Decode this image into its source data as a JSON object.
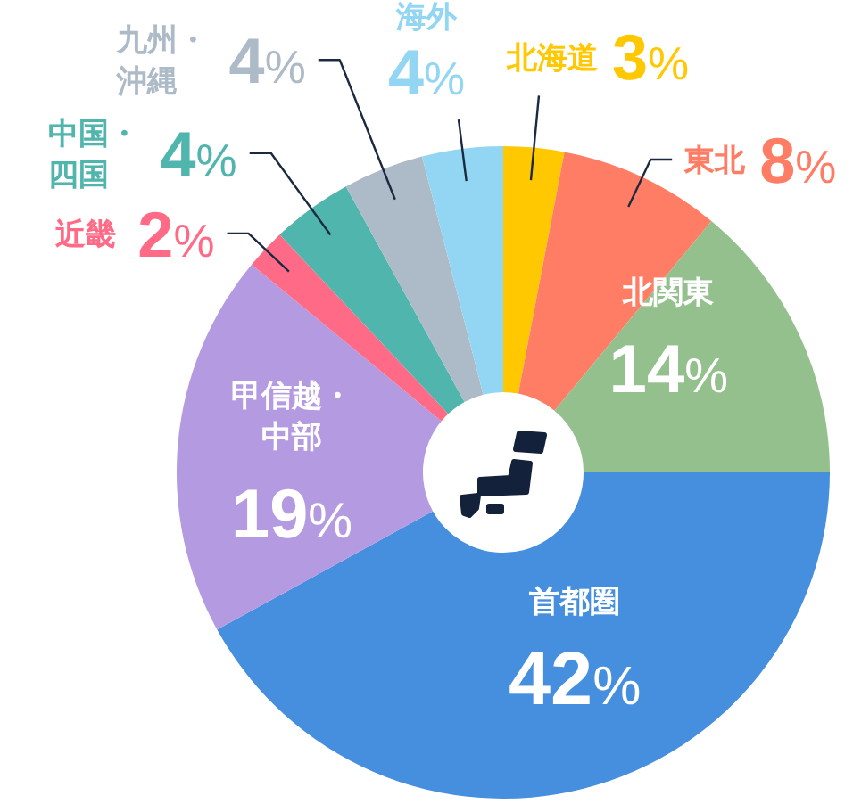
{
  "chart_data": {
    "type": "donut",
    "categories": [
      "北海道",
      "東北",
      "北関東",
      "首都圏",
      "甲信越・中部",
      "近畿",
      "中国・四国",
      "九州・沖縄",
      "海外"
    ],
    "values": [
      3,
      8,
      14,
      42,
      19,
      2,
      4,
      4,
      4
    ],
    "colors": [
      "#ffc800",
      "#ff7d64",
      "#93c08d",
      "#468ede",
      "#b49ae0",
      "#ff6b87",
      "#4fb5ad",
      "#adbac8",
      "#93d6f3"
    ],
    "value_labels": [
      "3%",
      "8%",
      "14%",
      "42%",
      "19%",
      "2%",
      "4%",
      "4%",
      "4%"
    ]
  }
}
